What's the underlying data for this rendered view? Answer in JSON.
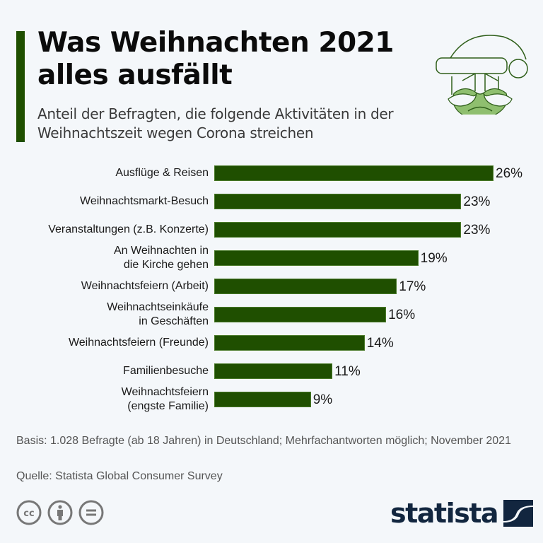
{
  "header": {
    "title": "Was Weihnachten 2021 alles ausfällt",
    "subtitle": "Anteil der Befragten, die folgende Aktivitäten in der Weihnachtszeit wegen Corona streichen"
  },
  "colors": {
    "accent": "#1f4f00",
    "bar": "#1f4f00",
    "santa_fill": "#8fbf6f",
    "logo": "#12263f"
  },
  "chart_data": {
    "type": "bar",
    "orientation": "horizontal",
    "title": "Was Weihnachten 2021 alles ausfällt",
    "subtitle": "Anteil der Befragten, die folgende Aktivitäten in der Weihnachtszeit wegen Corona streichen",
    "xlabel": "",
    "ylabel": "",
    "unit": "%",
    "xlim": [
      0,
      26
    ],
    "grid": false,
    "categories": [
      "Ausflüge & Reisen",
      "Weihnachtsmarkt-Besuch",
      "Veranstaltungen (z.B. Konzerte)",
      "An Weihnachten in\ndie Kirche gehen",
      "Weihnachtsfeiern (Arbeit)",
      "Weihnachtseinkäufe\nin Geschäften",
      "Weihnachtsfeiern (Freunde)",
      "Familienbesuche",
      "Weihnachtsfeiern\n(engste Familie)"
    ],
    "values": [
      26,
      23,
      23,
      19,
      17,
      16,
      14,
      11,
      9
    ],
    "value_labels": [
      "26%",
      "23%",
      "23%",
      "19%",
      "17%",
      "16%",
      "14%",
      "11%",
      "9%"
    ]
  },
  "footer": {
    "basis": "Basis: 1.028 Befragte (ab 18 Jahren) in Deutschland; Mehrfachantworten möglich; November 2021",
    "source": "Quelle: Statista Global Consumer Survey",
    "license_icons": [
      "cc-icon",
      "attribution-icon",
      "no-derivatives-icon"
    ],
    "logo_text": "statista"
  }
}
